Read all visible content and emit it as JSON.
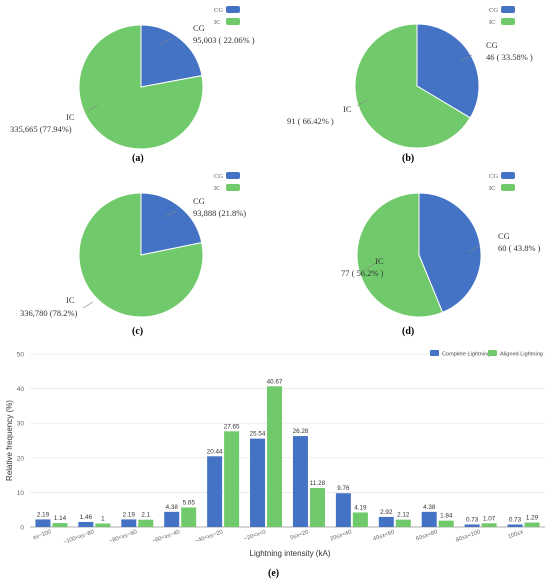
{
  "colors": {
    "cg": "#4472C4",
    "ic": "#70C96A",
    "complete": "#4472C4",
    "aligned": "#70C96A"
  },
  "chart_data": [
    {
      "type": "pie",
      "id": "a",
      "panel_label": "(a)",
      "legend": [
        "CG",
        "IC"
      ],
      "slices": [
        {
          "name": "CG",
          "value": 95003,
          "label_name": "CG",
          "label_value": "95,003 ( 22.06% )"
        },
        {
          "name": "IC",
          "value": 335665,
          "label_name": "IC",
          "label_value": "335,665 (77.94%)"
        }
      ]
    },
    {
      "type": "pie",
      "id": "b",
      "panel_label": "(b)",
      "legend": [
        "CG",
        "IC"
      ],
      "slices": [
        {
          "name": "CG",
          "value": 46,
          "label_name": "CG",
          "label_value": "46 ( 33.58% )"
        },
        {
          "name": "IC",
          "value": 91,
          "label_name": "IC",
          "label_value": "91 ( 66.42% )"
        }
      ]
    },
    {
      "type": "pie",
      "id": "c",
      "panel_label": "(c)",
      "legend": [
        "CG",
        "IC"
      ],
      "slices": [
        {
          "name": "CG",
          "value": 93888,
          "label_name": "CG",
          "label_value": "93,888 (21.8%)"
        },
        {
          "name": "IC",
          "value": 336780,
          "label_name": "IC",
          "label_value": "336,780 (78.2%)"
        }
      ]
    },
    {
      "type": "pie",
      "id": "d",
      "panel_label": "(d)",
      "legend": [
        "CG",
        "IC"
      ],
      "slices": [
        {
          "name": "CG",
          "value": 60,
          "label_name": "CG",
          "label_value": "60 ( 43.8% )"
        },
        {
          "name": "IC",
          "value": 77,
          "label_name": "IC",
          "label_value": "77 ( 56.2% )"
        }
      ]
    },
    {
      "type": "bar",
      "id": "e",
      "panel_label": "(e)",
      "xlabel": "Lightning intensity (kA)",
      "ylabel": "Relative frequency (%)",
      "ylim": [
        0,
        50
      ],
      "yticks": [
        0,
        10,
        20,
        30,
        40,
        50
      ],
      "legend_position": "top-right",
      "categories": [
        "x≤−100",
        "−100<x≤−80",
        "−80<x≤−60",
        "−60<x≤−40",
        "−40<x≤−20",
        "−20<x<0",
        "0≤x<20",
        "20≤x<40",
        "40≤x<60",
        "60≤x<80",
        "80≤x<100",
        "100≤x"
      ],
      "series": [
        {
          "name": "Complete Lightning",
          "values": [
            2.19,
            1.46,
            2.19,
            4.38,
            20.44,
            25.54,
            26.28,
            9.76,
            2.92,
            4.38,
            0.73,
            0.73
          ]
        },
        {
          "name": "Aligned Lightning",
          "values": [
            1.14,
            1,
            2.1,
            5.65,
            27.65,
            40.67,
            11.28,
            4.19,
            2.12,
            1.84,
            1.07,
            1.29
          ]
        }
      ]
    }
  ]
}
